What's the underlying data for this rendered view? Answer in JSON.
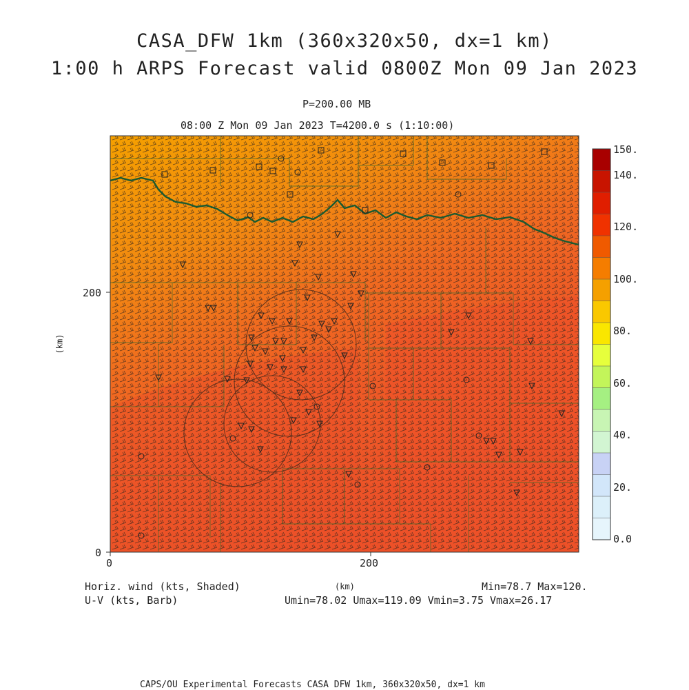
{
  "title_line1": "CASA_DFW 1km (360x320x50, dx=1 km)",
  "title_line2": "1:00 h ARPS Forecast valid 0800Z Mon 09 Jan 2023",
  "level": "P=200.00 MB",
  "time_line": "08:00 Z Mon 09 Jan 2023    T=4200.0 s (1:10:00)",
  "x_axis": {
    "label": "(km)",
    "ticks": [
      "0",
      "200"
    ]
  },
  "y_axis": {
    "label": "(km)",
    "ticks": [
      "0",
      "200"
    ]
  },
  "colorbar": {
    "labels": [
      "150.",
      "140.",
      "120.",
      "100.",
      "80.",
      "60.",
      "40.",
      "20.",
      "0.0"
    ],
    "colors": [
      "#a80000",
      "#c81400",
      "#e01e00",
      "#f03200",
      "#f05a00",
      "#f57d00",
      "#f5a000",
      "#fac800",
      "#fae600",
      "#e6ff3c",
      "#c3f55a",
      "#a5f082",
      "#c8f5b4",
      "#d2f5d2",
      "#c8d2f5",
      "#d2e6fa",
      "#dcf0fa",
      "#e6f5fc"
    ]
  },
  "legend_left": {
    "line1": "Horiz. wind (kts, Shaded)",
    "line2": "U-V (kts, Barb)"
  },
  "stats": {
    "minmax": "Min=78.7  Max=120.",
    "uv": "Umin=78.02 Umax=119.09 Vmin=3.75 Vmax=26.17"
  },
  "footer": "CAPS/OU Experimental Forecasts  CASA DFW 1km, 360x320x50, dx=1 km"
}
